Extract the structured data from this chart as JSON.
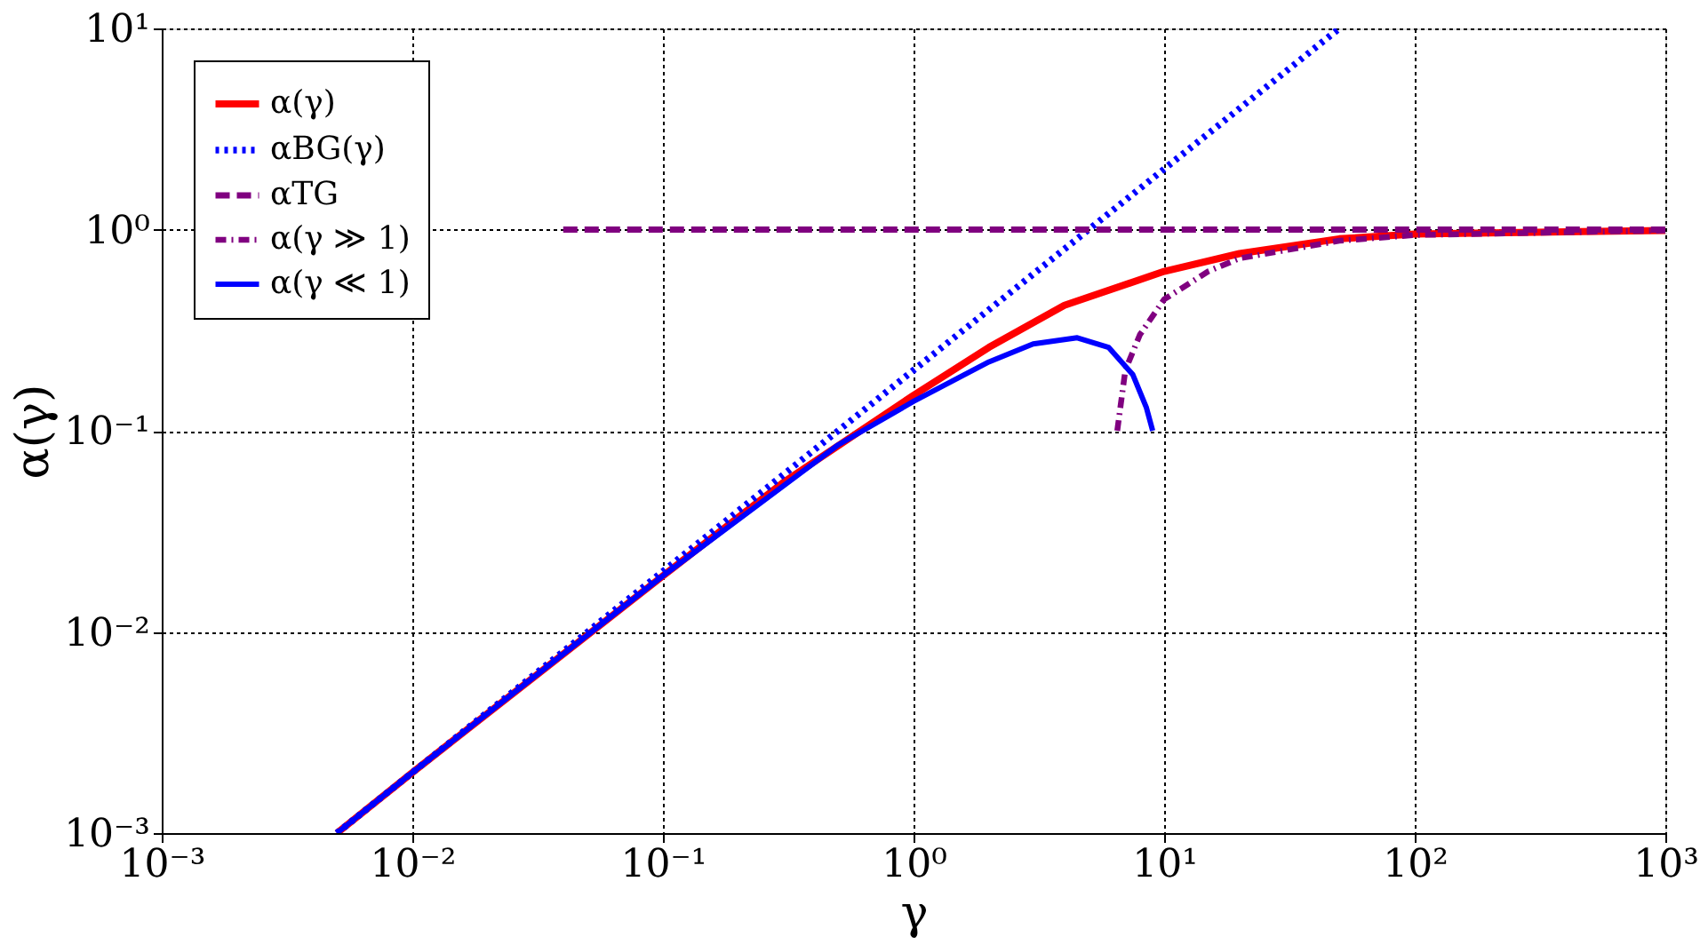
{
  "chart_data": {
    "type": "line",
    "xlabel": "γ",
    "ylabel": "α(γ)",
    "log": "xy",
    "grid": true,
    "legend": "top left",
    "marker": "none",
    "xlim": [
      0.001,
      1000
    ],
    "ylim": [
      0.001,
      10
    ],
    "xticks": [
      {
        "value": 0.001,
        "label": "10⁻³"
      },
      {
        "value": 0.01,
        "label": "10⁻²"
      },
      {
        "value": 0.1,
        "label": "10⁻¹"
      },
      {
        "value": 1,
        "label": "10⁰"
      },
      {
        "value": 10,
        "label": "10¹"
      },
      {
        "value": 100,
        "label": "10²"
      },
      {
        "value": 1000,
        "label": "10³"
      }
    ],
    "yticks": [
      {
        "value": 0.001,
        "label": "10⁻³"
      },
      {
        "value": 0.01,
        "label": "10⁻²"
      },
      {
        "value": 0.1,
        "label": "10⁻¹"
      },
      {
        "value": 1,
        "label": "10⁰"
      },
      {
        "value": 10,
        "label": "10¹"
      }
    ],
    "series": [
      {
        "name": "α(γ)",
        "color": "#ff0000",
        "line_style": "solid",
        "x": [
          0.005,
          0.01,
          0.1,
          0.3,
          1,
          2,
          4,
          10,
          20,
          50,
          100,
          1000
        ],
        "values": [
          0.001,
          0.002,
          0.019,
          0.055,
          0.15,
          0.26,
          0.42,
          0.62,
          0.76,
          0.9,
          0.95,
          0.99
        ]
      },
      {
        "name": "αBG(γ)",
        "color": "#0000ff",
        "line_style": "dotted",
        "x": [
          0.005,
          50
        ],
        "values": [
          0.001,
          10
        ]
      },
      {
        "name": "αTG",
        "color": "#800080",
        "line_style": "dashed",
        "x": [
          0.04,
          1000
        ],
        "values": [
          1,
          1
        ]
      },
      {
        "name": "α(γ ≫ 1)",
        "color": "#800080",
        "line_style": "dashdot",
        "x": [
          6.5,
          7,
          8,
          10,
          15,
          20,
          50,
          100,
          1000
        ],
        "values": [
          0.1,
          0.2,
          0.3,
          0.45,
          0.62,
          0.72,
          0.88,
          0.94,
          0.99
        ]
      },
      {
        "name": "α(γ ≪ 1)",
        "color": "#0000ff",
        "line_style": "solid",
        "x": [
          0.005,
          0.01,
          0.1,
          0.5,
          1,
          2,
          3,
          4.5,
          6,
          7.5,
          8.5,
          9
        ],
        "values": [
          0.001,
          0.002,
          0.019,
          0.085,
          0.14,
          0.22,
          0.27,
          0.29,
          0.26,
          0.19,
          0.13,
          0.1
        ]
      }
    ]
  }
}
